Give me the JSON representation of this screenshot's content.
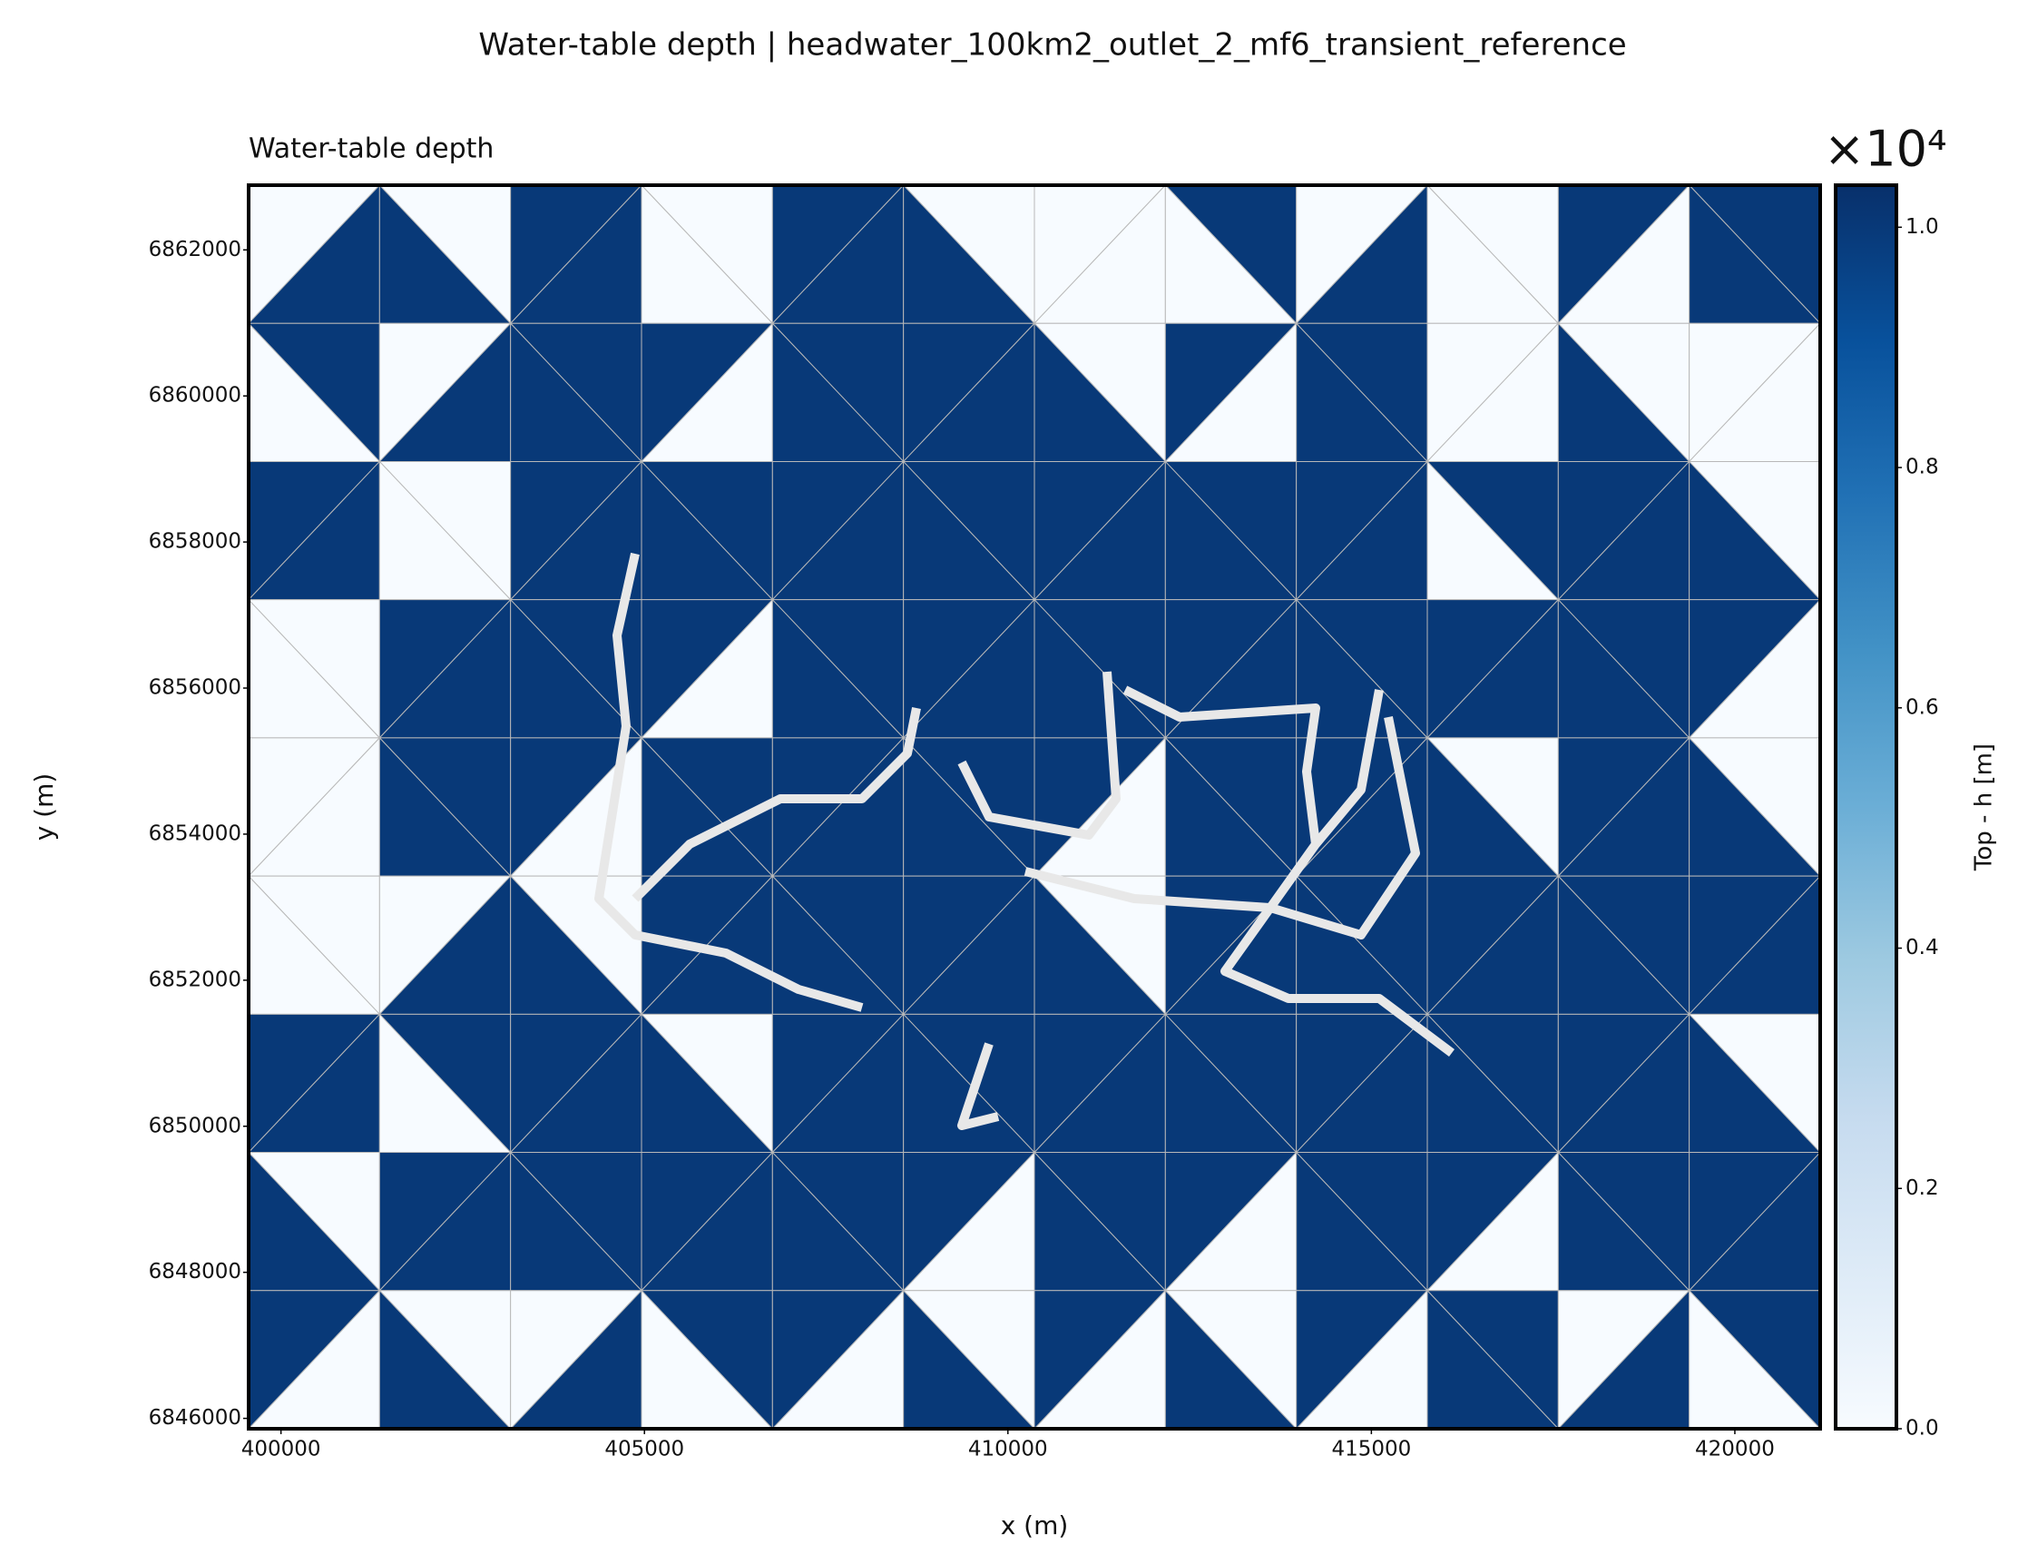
{
  "chart_data": {
    "type": "mesh",
    "title": "Water-table depth | headwater_100km2_outlet_2_mf6_transient_reference",
    "subtitle": "Water-table depth",
    "x_label": "x (m)",
    "y_label": "y (m)",
    "colorbar_label": "Top - h [m]",
    "colorbar_offset": "×10⁴",
    "colormap": [
      "#f7fbff",
      "#deebf7",
      "#c6dbef",
      "#9ecae1",
      "#6baed6",
      "#4292c6",
      "#2171b5",
      "#08519c",
      "#08306b"
    ],
    "xlim": [
      399555,
      421174
    ],
    "ylim": [
      6845858,
      6862886
    ],
    "clim": [
      0,
      1.035
    ],
    "xticks": [
      400000,
      405000,
      410000,
      415000,
      420000
    ],
    "yticks": [
      6846000,
      6848000,
      6850000,
      6852000,
      6854000,
      6856000,
      6858000,
      6860000,
      6862000
    ],
    "cticks": [
      {
        "value": 0,
        "label": "0.0"
      },
      0.2,
      0.4,
      0.6,
      0.8,
      {
        "value": 1,
        "label": "1.0"
      }
    ],
    "cells": [
      [
        0,
        1,
        0,
        1,
        1,
        1,
        0,
        0,
        1,
        1,
        0,
        1,
        0,
        0,
        1,
        0,
        0,
        1,
        0,
        0,
        1,
        0,
        1,
        1
      ],
      [
        1,
        0,
        0,
        1,
        1,
        1,
        1,
        0,
        1,
        1,
        1,
        1,
        0,
        1,
        1,
        0,
        1,
        1,
        0,
        0,
        0,
        1,
        0,
        0
      ],
      [
        1,
        1,
        0,
        0,
        1,
        1,
        1,
        1,
        1,
        1,
        1,
        1,
        1,
        1,
        1,
        1,
        1,
        1,
        1,
        0,
        1,
        1,
        0,
        1
      ],
      [
        0,
        0,
        1,
        1,
        1,
        1,
        1,
        0,
        1,
        1,
        1,
        1,
        1,
        1,
        1,
        1,
        1,
        1,
        1,
        1,
        1,
        1,
        1,
        0
      ],
      [
        0,
        0,
        1,
        1,
        1,
        0,
        1,
        1,
        1,
        1,
        1,
        1,
        1,
        0,
        1,
        1,
        1,
        1,
        0,
        1,
        1,
        1,
        0,
        1
      ],
      [
        0,
        0,
        0,
        1,
        0,
        1,
        1,
        1,
        1,
        1,
        1,
        1,
        0,
        1,
        1,
        1,
        1,
        1,
        1,
        1,
        1,
        1,
        1,
        1
      ],
      [
        1,
        1,
        1,
        0,
        1,
        1,
        0,
        1,
        1,
        1,
        1,
        1,
        1,
        1,
        1,
        1,
        1,
        1,
        1,
        1,
        1,
        1,
        0,
        1
      ],
      [
        0,
        1,
        1,
        1,
        1,
        1,
        1,
        1,
        1,
        1,
        1,
        0,
        1,
        1,
        1,
        0,
        1,
        1,
        1,
        0,
        1,
        1,
        1,
        1
      ],
      [
        1,
        0,
        0,
        1,
        0,
        1,
        1,
        0,
        1,
        0,
        0,
        1,
        1,
        0,
        0,
        1,
        1,
        0,
        1,
        1,
        0,
        1,
        1,
        0
      ]
    ]
  }
}
